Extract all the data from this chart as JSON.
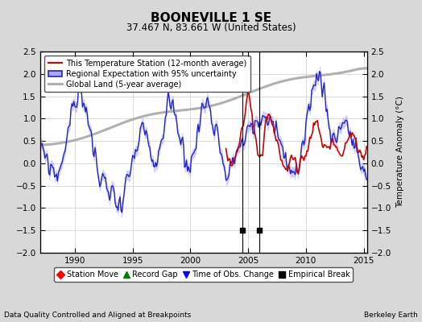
{
  "title": "BOONEVILLE 1 SE",
  "subtitle": "37.467 N, 83.661 W (United States)",
  "ylabel": "Temperature Anomaly (°C)",
  "xlabel_left": "Data Quality Controlled and Aligned at Breakpoints",
  "xlabel_right": "Berkeley Earth",
  "ylim": [
    -2.0,
    2.5
  ],
  "xlim_start": 1987.0,
  "xlim_end": 2015.3,
  "xticks": [
    1990,
    1995,
    2000,
    2005,
    2010,
    2015
  ],
  "yticks": [
    -2,
    -1.5,
    -1,
    -0.5,
    0,
    0.5,
    1,
    1.5,
    2,
    2.5
  ],
  "legend_items": [
    {
      "label": "This Temperature Station (12-month average)",
      "color": "#cc0000",
      "lw": 1.5
    },
    {
      "label": "Regional Expectation with 95% uncertainty",
      "color": "#3333bb",
      "lw": 1.5
    },
    {
      "label": "Global Land (5-year average)",
      "color": "#aaaaaa",
      "lw": 2.5
    }
  ],
  "marker_legend": [
    {
      "label": "Station Move",
      "color": "red",
      "marker": "D"
    },
    {
      "label": "Record Gap",
      "color": "green",
      "marker": "^"
    },
    {
      "label": "Time of Obs. Change",
      "color": "blue",
      "marker": "v"
    },
    {
      "label": "Empirical Break",
      "color": "black",
      "marker": "s"
    }
  ],
  "empirical_breaks": [
    2004.5,
    2006.0
  ],
  "bg_color": "#d8d8d8",
  "plot_bg_color": "#ffffff"
}
